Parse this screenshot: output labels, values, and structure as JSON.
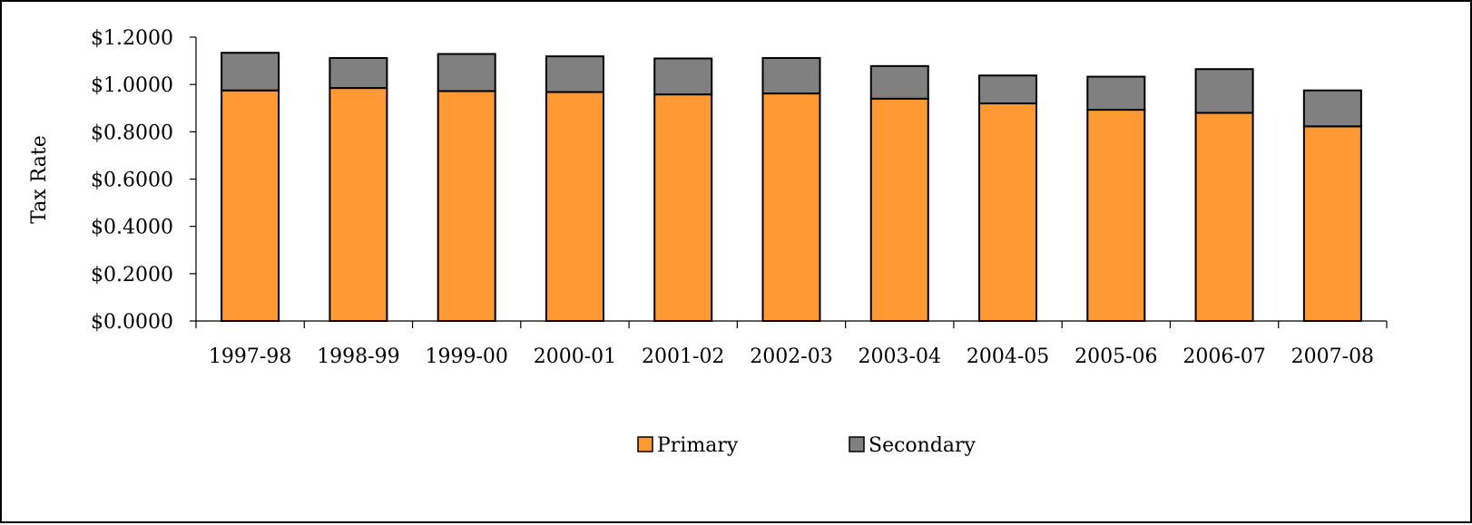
{
  "chart_data": {
    "type": "bar",
    "stacked": true,
    "title": "",
    "xlabel": "",
    "ylabel": "Tax Rate",
    "ylim": [
      0,
      1.2
    ],
    "yticks": [
      0,
      0.2,
      0.4,
      0.6,
      0.8,
      1.0,
      1.2
    ],
    "ytick_labels": [
      "$0.0000",
      "$0.2000",
      "$0.4000",
      "$0.6000",
      "$0.8000",
      "$1.0000",
      "$1.2000"
    ],
    "grid": false,
    "legend_position": "bottom-center",
    "categories": [
      "1997-98",
      "1998-99",
      "1999-00",
      "2000-01",
      "2001-02",
      "2002-03",
      "2003-04",
      "2004-05",
      "2005-06",
      "2006-07",
      "2007-08"
    ],
    "series": [
      {
        "name": "Primary",
        "color": "#FF9933",
        "values": [
          0.975,
          0.985,
          0.972,
          0.968,
          0.958,
          0.962,
          0.94,
          0.92,
          0.893,
          0.88,
          0.823
        ]
      },
      {
        "name": "Secondary",
        "color": "#808080",
        "values": [
          0.159,
          0.127,
          0.157,
          0.151,
          0.152,
          0.15,
          0.138,
          0.118,
          0.14,
          0.185,
          0.152
        ]
      }
    ]
  }
}
